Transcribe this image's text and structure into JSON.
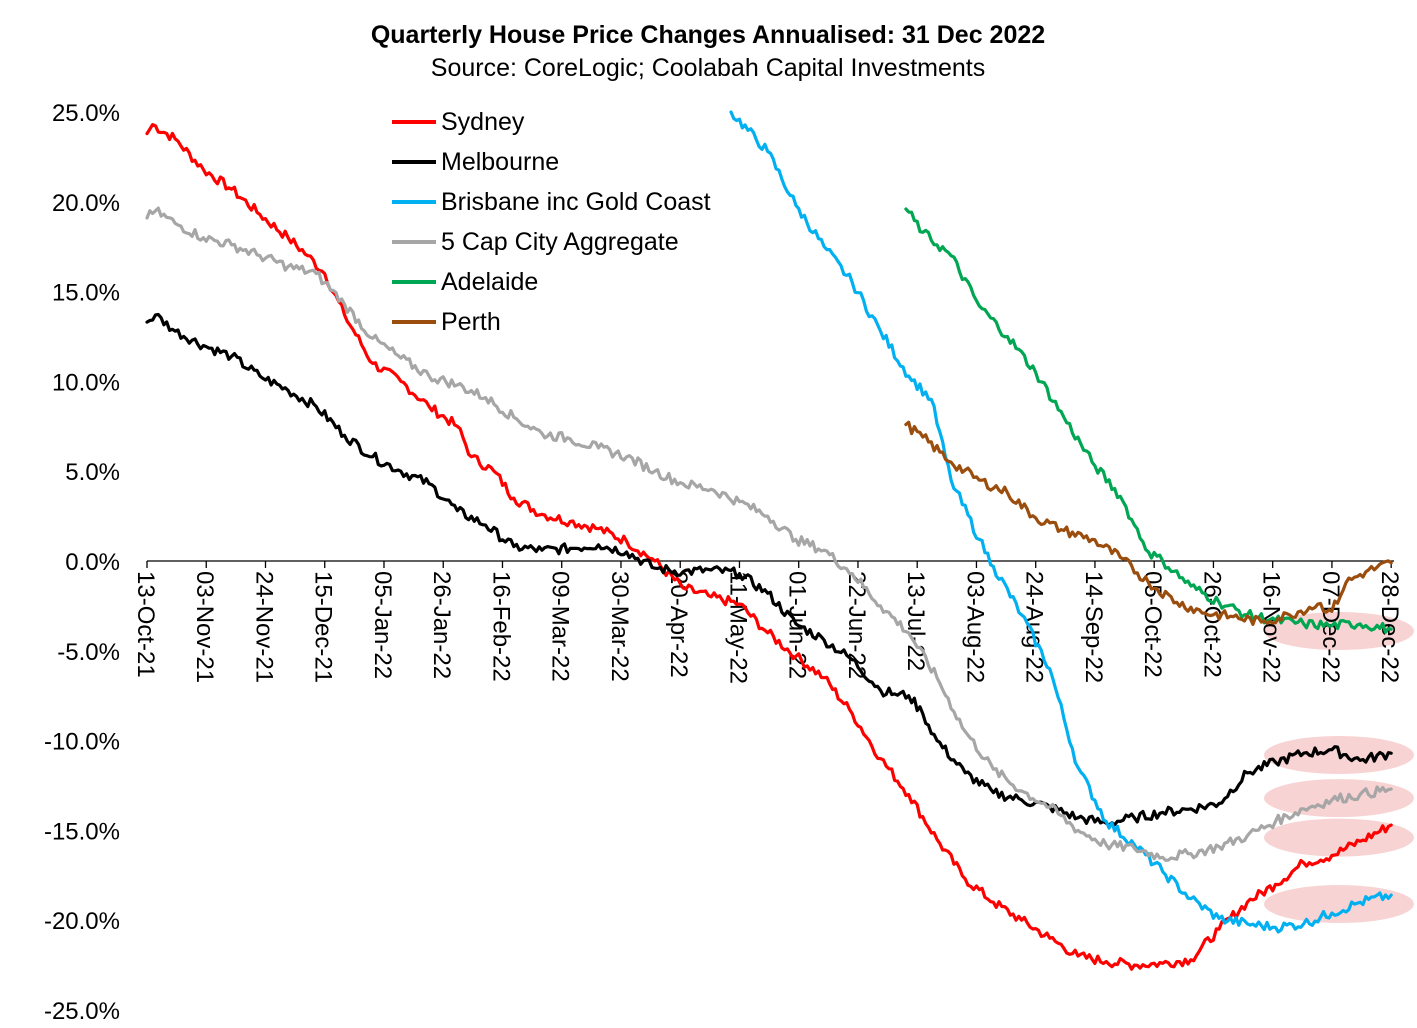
{
  "chart_data": {
    "type": "line",
    "title": "Quarterly House Price Changes Annualised: 31 Dec 2022",
    "subtitle": "Source: CoreLogic; Coolabah Capital Investments",
    "ylim": [
      -25,
      25
    ],
    "yticks": [
      25,
      20,
      15,
      10,
      5,
      0,
      -5,
      -10,
      -15,
      -20,
      -25
    ],
    "ytick_labels": [
      "25.0%",
      "20.0%",
      "15.0%",
      "10.0%",
      "5.0%",
      "0.0%",
      "-5.0%",
      "-10.0%",
      "-15.0%",
      "-20.0%",
      "-25.0%"
    ],
    "x_range_days": [
      0,
      442
    ],
    "xticks": [
      {
        "label": "13-Oct-21",
        "day": 0
      },
      {
        "label": "03-Nov-21",
        "day": 21
      },
      {
        "label": "24-Nov-21",
        "day": 42
      },
      {
        "label": "15-Dec-21",
        "day": 63
      },
      {
        "label": "05-Jan-22",
        "day": 84
      },
      {
        "label": "26-Jan-22",
        "day": 105
      },
      {
        "label": "16-Feb-22",
        "day": 126
      },
      {
        "label": "09-Mar-22",
        "day": 147
      },
      {
        "label": "30-Mar-22",
        "day": 168
      },
      {
        "label": "20-Apr-22",
        "day": 189
      },
      {
        "label": "11-May-22",
        "day": 210
      },
      {
        "label": "01-Jun-22",
        "day": 231
      },
      {
        "label": "22-Jun-22",
        "day": 252
      },
      {
        "label": "13-Jul-22",
        "day": 273
      },
      {
        "label": "03-Aug-22",
        "day": 294
      },
      {
        "label": "24-Aug-22",
        "day": 315
      },
      {
        "label": "14-Sep-22",
        "day": 336
      },
      {
        "label": "05-Oct-22",
        "day": 357
      },
      {
        "label": "26-Oct-22",
        "day": 378
      },
      {
        "label": "16-Nov-22",
        "day": 399
      },
      {
        "label": "07-Dec-22",
        "day": 420
      },
      {
        "label": "28-Dec-22",
        "day": 441
      }
    ],
    "legend_position": "top-center",
    "highlights": [
      {
        "series": "Adelaide / Perth",
        "day_from": 403,
        "day_to": 442,
        "y": -3.9
      },
      {
        "series": "Melbourne",
        "day_from": 403,
        "day_to": 442,
        "y": -10.8
      },
      {
        "series": "5 Cap City Aggregate",
        "day_from": 403,
        "day_to": 442,
        "y": -13.2
      },
      {
        "series": "Sydney",
        "day_from": 403,
        "day_to": 442,
        "y": -15.4
      },
      {
        "series": "Brisbane inc Gold Coast",
        "day_from": 403,
        "day_to": 442,
        "y": -19.1
      }
    ],
    "series": [
      {
        "name": "Sydney",
        "color": "#ff0000",
        "points": [
          [
            0,
            23.8
          ],
          [
            2,
            24.3
          ],
          [
            10,
            23.5
          ],
          [
            20,
            21.8
          ],
          [
            30,
            20.7
          ],
          [
            40,
            19.3
          ],
          [
            50,
            18.0
          ],
          [
            57,
            17.0
          ],
          [
            63,
            16.0
          ],
          [
            70,
            13.7
          ],
          [
            80,
            11.0
          ],
          [
            90,
            10.0
          ],
          [
            100,
            8.6
          ],
          [
            110,
            7.5
          ],
          [
            115,
            5.8
          ],
          [
            123,
            5.0
          ],
          [
            130,
            3.5
          ],
          [
            140,
            2.6
          ],
          [
            150,
            2.2
          ],
          [
            160,
            1.8
          ],
          [
            170,
            1.1
          ],
          [
            180,
            0.0
          ],
          [
            190,
            -1.5
          ],
          [
            200,
            -2.0
          ],
          [
            210,
            -2.4
          ],
          [
            220,
            -4.0
          ],
          [
            230,
            -5.3
          ],
          [
            240,
            -6.5
          ],
          [
            250,
            -8.5
          ],
          [
            260,
            -11.0
          ],
          [
            270,
            -13.0
          ],
          [
            280,
            -15.5
          ],
          [
            290,
            -17.7
          ],
          [
            300,
            -19.0
          ],
          [
            310,
            -20.0
          ],
          [
            320,
            -21.0
          ],
          [
            330,
            -22.0
          ],
          [
            340,
            -22.3
          ],
          [
            350,
            -22.5
          ],
          [
            360,
            -22.4
          ],
          [
            370,
            -22.2
          ],
          [
            380,
            -20.5
          ],
          [
            390,
            -19.0
          ],
          [
            400,
            -18.0
          ],
          [
            410,
            -16.8
          ],
          [
            420,
            -16.4
          ],
          [
            430,
            -15.6
          ],
          [
            441,
            -14.7
          ]
        ]
      },
      {
        "name": "Melbourne",
        "color": "#000000",
        "points": [
          [
            0,
            13.3
          ],
          [
            3,
            13.7
          ],
          [
            10,
            12.8
          ],
          [
            20,
            12.0
          ],
          [
            30,
            11.4
          ],
          [
            40,
            10.3
          ],
          [
            50,
            9.5
          ],
          [
            60,
            8.6
          ],
          [
            70,
            7.0
          ],
          [
            80,
            5.8
          ],
          [
            90,
            5.0
          ],
          [
            100,
            4.3
          ],
          [
            110,
            2.8
          ],
          [
            120,
            2.0
          ],
          [
            130,
            0.8
          ],
          [
            140,
            0.6
          ],
          [
            150,
            0.7
          ],
          [
            160,
            0.9
          ],
          [
            170,
            0.5
          ],
          [
            180,
            -0.4
          ],
          [
            190,
            -0.6
          ],
          [
            200,
            -0.5
          ],
          [
            210,
            -0.7
          ],
          [
            220,
            -1.8
          ],
          [
            230,
            -3.5
          ],
          [
            240,
            -4.4
          ],
          [
            250,
            -5.5
          ],
          [
            260,
            -7.2
          ],
          [
            265,
            -7.4
          ],
          [
            270,
            -7.5
          ],
          [
            275,
            -8.5
          ],
          [
            280,
            -10.0
          ],
          [
            290,
            -11.8
          ],
          [
            300,
            -12.9
          ],
          [
            310,
            -13.3
          ],
          [
            320,
            -13.7
          ],
          [
            330,
            -14.3
          ],
          [
            340,
            -14.6
          ],
          [
            350,
            -14.3
          ],
          [
            360,
            -14.0
          ],
          [
            370,
            -13.8
          ],
          [
            380,
            -13.5
          ],
          [
            390,
            -11.8
          ],
          [
            400,
            -11.2
          ],
          [
            410,
            -10.7
          ],
          [
            420,
            -10.5
          ],
          [
            430,
            -11.1
          ],
          [
            441,
            -10.7
          ]
        ]
      },
      {
        "name": "Brisbane inc Gold Coast",
        "color": "#00b0f0",
        "points": [
          [
            207,
            25.0
          ],
          [
            220,
            22.8
          ],
          [
            230,
            19.8
          ],
          [
            240,
            17.5
          ],
          [
            250,
            15.5
          ],
          [
            260,
            12.8
          ],
          [
            270,
            10.3
          ],
          [
            278,
            9.0
          ],
          [
            285,
            4.5
          ],
          [
            295,
            1.2
          ],
          [
            300,
            -0.3
          ],
          [
            310,
            -3.0
          ],
          [
            320,
            -6.0
          ],
          [
            330,
            -11.5
          ],
          [
            340,
            -14.5
          ],
          [
            350,
            -15.8
          ],
          [
            360,
            -17.3
          ],
          [
            370,
            -18.8
          ],
          [
            380,
            -19.9
          ],
          [
            390,
            -20.2
          ],
          [
            400,
            -20.4
          ],
          [
            410,
            -20.2
          ],
          [
            420,
            -19.6
          ],
          [
            430,
            -19.0
          ],
          [
            441,
            -18.6
          ]
        ]
      },
      {
        "name": "5 Cap City Aggregate",
        "color": "#a6a6a6",
        "points": [
          [
            0,
            19.1
          ],
          [
            3,
            19.5
          ],
          [
            10,
            18.8
          ],
          [
            20,
            18.0
          ],
          [
            30,
            17.6
          ],
          [
            40,
            17.0
          ],
          [
            50,
            16.4
          ],
          [
            60,
            16.0
          ],
          [
            63,
            15.5
          ],
          [
            70,
            14.3
          ],
          [
            80,
            12.4
          ],
          [
            90,
            11.3
          ],
          [
            100,
            10.3
          ],
          [
            110,
            9.8
          ],
          [
            120,
            9.1
          ],
          [
            130,
            8.0
          ],
          [
            140,
            7.1
          ],
          [
            150,
            6.8
          ],
          [
            160,
            6.3
          ],
          [
            170,
            5.8
          ],
          [
            180,
            5.0
          ],
          [
            190,
            4.3
          ],
          [
            200,
            4.0
          ],
          [
            210,
            3.3
          ],
          [
            220,
            2.5
          ],
          [
            230,
            1.2
          ],
          [
            240,
            0.6
          ],
          [
            250,
            -0.7
          ],
          [
            260,
            -2.5
          ],
          [
            270,
            -4.0
          ],
          [
            280,
            -6.5
          ],
          [
            290,
            -9.5
          ],
          [
            300,
            -11.6
          ],
          [
            310,
            -12.8
          ],
          [
            320,
            -13.7
          ],
          [
            330,
            -15.0
          ],
          [
            340,
            -15.8
          ],
          [
            350,
            -16.0
          ],
          [
            360,
            -16.5
          ],
          [
            370,
            -16.3
          ],
          [
            380,
            -15.9
          ],
          [
            390,
            -15.3
          ],
          [
            400,
            -14.5
          ],
          [
            410,
            -13.8
          ],
          [
            420,
            -13.3
          ],
          [
            430,
            -13.0
          ],
          [
            441,
            -12.7
          ]
        ]
      },
      {
        "name": "Adelaide",
        "color": "#00a651",
        "points": [
          [
            269,
            19.6
          ],
          [
            275,
            18.3
          ],
          [
            285,
            17.0
          ],
          [
            295,
            14.2
          ],
          [
            305,
            12.5
          ],
          [
            315,
            10.5
          ],
          [
            325,
            8.0
          ],
          [
            335,
            5.5
          ],
          [
            345,
            3.6
          ],
          [
            350,
            2.0
          ],
          [
            355,
            0.5
          ],
          [
            360,
            0.0
          ],
          [
            370,
            -1.4
          ],
          [
            380,
            -2.3
          ],
          [
            390,
            -3.0
          ],
          [
            400,
            -3.3
          ],
          [
            410,
            -3.5
          ],
          [
            420,
            -3.6
          ],
          [
            430,
            -3.5
          ],
          [
            441,
            -3.8
          ]
        ]
      },
      {
        "name": "Perth",
        "color": "#9b4d0d",
        "points": [
          [
            269,
            7.6
          ],
          [
            275,
            6.9
          ],
          [
            285,
            5.5
          ],
          [
            295,
            4.5
          ],
          [
            305,
            3.8
          ],
          [
            315,
            2.4
          ],
          [
            325,
            1.7
          ],
          [
            335,
            1.2
          ],
          [
            345,
            0.2
          ],
          [
            355,
            -1.2
          ],
          [
            365,
            -2.3
          ],
          [
            375,
            -2.9
          ],
          [
            385,
            -3.1
          ],
          [
            395,
            -3.4
          ],
          [
            405,
            -3.0
          ],
          [
            415,
            -2.4
          ],
          [
            420,
            -2.8
          ],
          [
            425,
            -1.2
          ],
          [
            432,
            -0.6
          ],
          [
            441,
            -0.1
          ]
        ]
      }
    ]
  }
}
